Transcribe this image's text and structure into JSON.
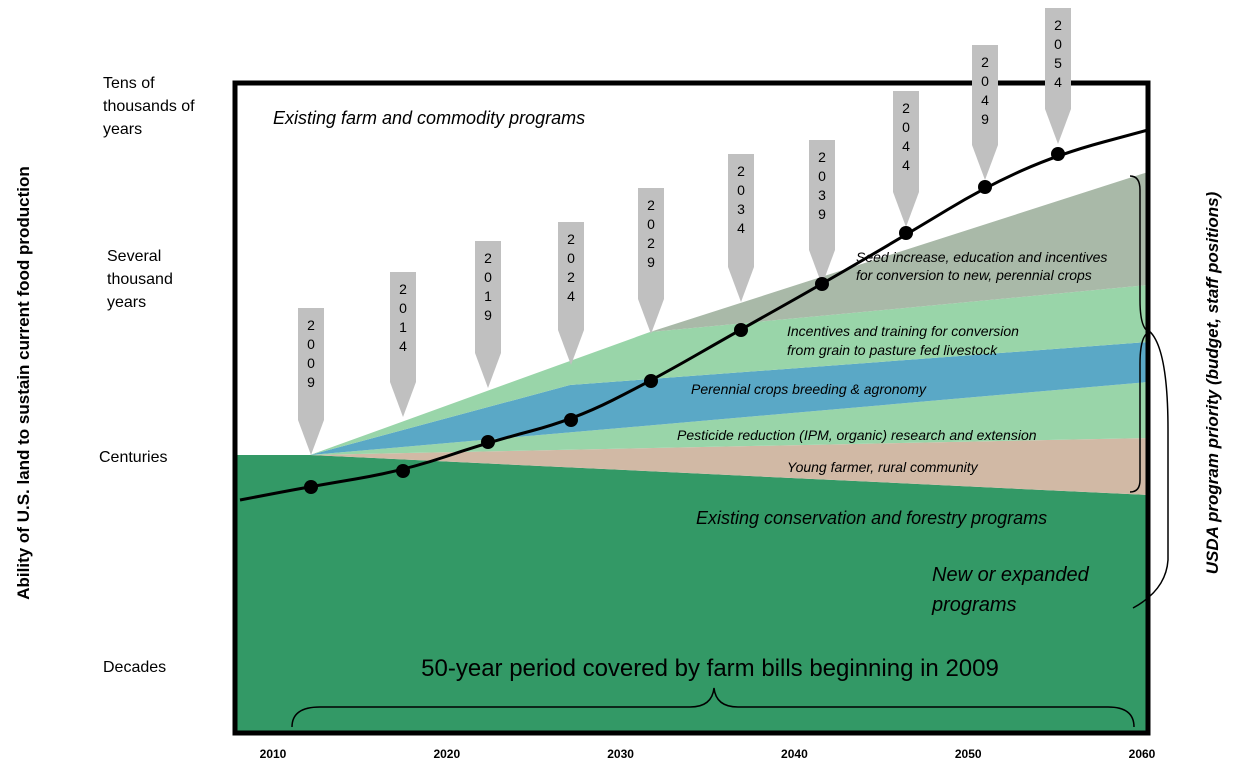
{
  "chart_data": {
    "type": "area",
    "y_axis_label": "Ability of U.S. land to sustain current food production",
    "right_axis_label": "USDA program priority (budget, staff positions)",
    "y_tick_labels": [
      "Tens of thousands of years",
      "Several thousand years",
      "Centuries",
      "Decades"
    ],
    "x_tick_labels": [
      "2010",
      "2020",
      "2030",
      "2040",
      "2050",
      "2060"
    ],
    "x_range": [
      2006,
      2060
    ],
    "farm_bill_years": [
      "2009",
      "2014",
      "2019",
      "2024",
      "2029",
      "2034",
      "2039",
      "2044",
      "2049",
      "2054"
    ],
    "bands": [
      {
        "name": "Existing farm and commodity programs",
        "color": "#ffffff"
      },
      {
        "name": "Seed increase, education and incentives for conversion to new, perennial crops",
        "color": "#a9b9a8"
      },
      {
        "name": "Incentives and training for conversion from grain to pasture fed livestock",
        "color": "#99d5a9"
      },
      {
        "name": "Perennial crops breeding & agronomy",
        "color": "#5aa8c6"
      },
      {
        "name": "Pesticide reduction (IPM, organic) research and extension",
        "color": "#99d5a9"
      },
      {
        "name": "Young farmer, rural community",
        "color": "#d1b9a5"
      },
      {
        "name": "Existing conservation and forestry programs",
        "color": "#339966"
      }
    ],
    "annotations": {
      "new_programs": "New or expanded programs",
      "period": "50-year period covered by farm bills beginning in 2009"
    }
  }
}
